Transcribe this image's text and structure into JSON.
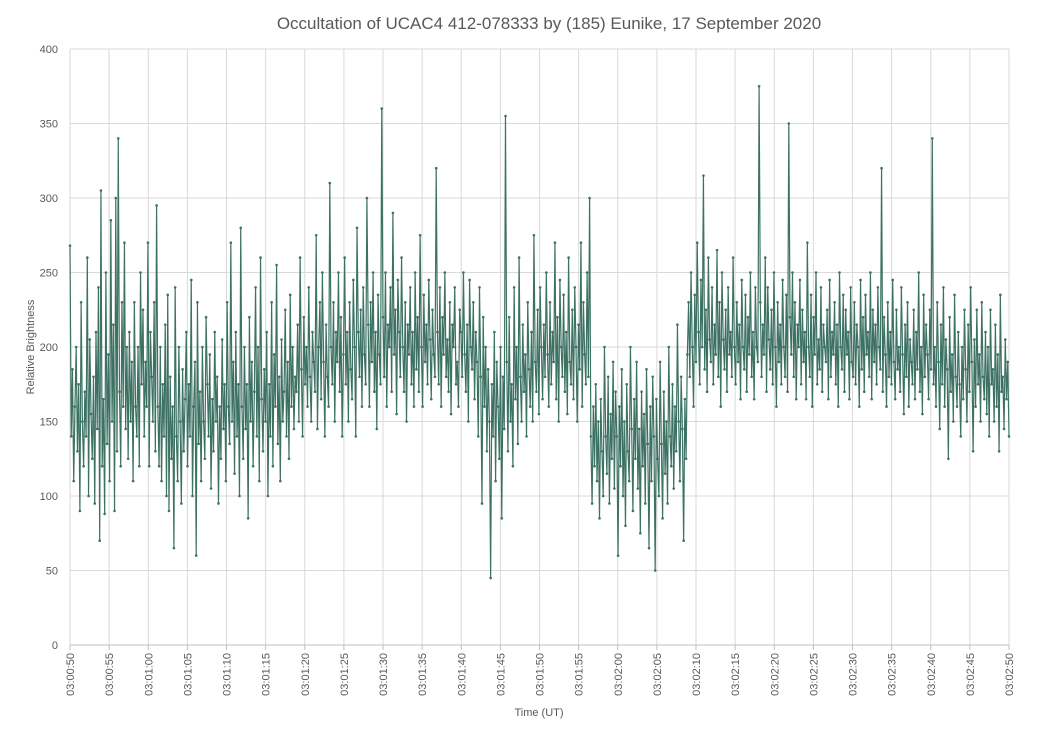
{
  "chart_data": {
    "type": "line",
    "title": "Occultation of UCAC4 412-078333 by (185) Eunike, 17 September 2020",
    "xlabel": "Time (UT)",
    "ylabel": "Relative Brightness",
    "ylim": [
      0,
      400
    ],
    "yticks": [
      0,
      50,
      100,
      150,
      200,
      250,
      300,
      350,
      400
    ],
    "xlim": [
      "03:00:50",
      "03:02:50"
    ],
    "xticks": [
      "03:00:50",
      "03:00:55",
      "03:01:00",
      "03:01:05",
      "03:01:10",
      "03:01:15",
      "03:01:20",
      "03:01:25",
      "03:01:30",
      "03:01:35",
      "03:01:40",
      "03:01:45",
      "03:01:50",
      "03:01:55",
      "03:02:00",
      "03:02:05",
      "03:02:10",
      "03:02:15",
      "03:02:20",
      "03:02:25",
      "03:02:30",
      "03:02:35",
      "03:02:40",
      "03:02:45",
      "03:02:50"
    ],
    "grid": true,
    "legend": "none",
    "markers": true,
    "color": "#3d7263",
    "series": [
      {
        "x_start": "03:00:50",
        "x_end": "03:02:50",
        "values": [
          268,
          140,
          185,
          110,
          160,
          200,
          130,
          175,
          90,
          230,
          150,
          120,
          170,
          140,
          260,
          100,
          205,
          155,
          125,
          180,
          95,
          210,
          145,
          240,
          70,
          305,
          120,
          165,
          88,
          250,
          135,
          195,
          110,
          285,
          150,
          215,
          90,
          300,
          130,
          340,
          170,
          120,
          230,
          160,
          270,
          145,
          200,
          125,
          210,
          150,
          190,
          110,
          230,
          160,
          140,
          200,
          120,
          250,
          175,
          225,
          140,
          190,
          160,
          270,
          120,
          210,
          180,
          150,
          230,
          130,
          295,
          160,
          120,
          200,
          110,
          175,
          140,
          215,
          100,
          235,
          90,
          180,
          125,
          160,
          65,
          240,
          140,
          110,
          200,
          150,
          95,
          185,
          130,
          165,
          210,
          120,
          175,
          140,
          245,
          100,
          160,
          190,
          60,
          230,
          135,
          170,
          110,
          200,
          150,
          125,
          220,
          175,
          140,
          195,
          105,
          165,
          130,
          210,
          150,
          180,
          95,
          160,
          125,
          205,
          145,
          175,
          110,
          230,
          160,
          135,
          270,
          150,
          190,
          115,
          210,
          140,
          175,
          100,
          280,
          160,
          125,
          200,
          145,
          175,
          85,
          220,
          150,
          190,
          120,
          170,
          240,
          140,
          200,
          110,
          260,
          165,
          130,
          185,
          150,
          210,
          100,
          175,
          140,
          230,
          120,
          195,
          160,
          255,
          135,
          180,
          110,
          205,
          150,
          170,
          225,
          140,
          190,
          125,
          235,
          160,
          200,
          145,
          180,
          170,
          215,
          150,
          260,
          185,
          140,
          220,
          175,
          200,
          160,
          240,
          180,
          150,
          210,
          190,
          170,
          275,
          145,
          200,
          230,
          165,
          250,
          190,
          140,
          215,
          180,
          160,
          310,
          200,
          175,
          230,
          150,
          210,
          190,
          250,
          170,
          220,
          140,
          195,
          260,
          175,
          210,
          150,
          230,
          185,
          165,
          245,
          200,
          140,
          280,
          210,
          180,
          225,
          160,
          240,
          195,
          175,
          300,
          215,
          160,
          230,
          190,
          250,
          170,
          210,
          145,
          235,
          195,
          175,
          360,
          220,
          180,
          250,
          160,
          215,
          200,
          240,
          170,
          290,
          195,
          225,
          155,
          245,
          210,
          180,
          260,
          200,
          170,
          230,
          150,
          215,
          195,
          240,
          175,
          210,
          160,
          250,
          185,
          220,
          170,
          275,
          200,
          160,
          235,
          190,
          215,
          175,
          245,
          205,
          165,
          225,
          195,
          180,
          320,
          210,
          175,
          240,
          160,
          220,
          195,
          250,
          180,
          205,
          170,
          230,
          155,
          215,
          200,
          240,
          175,
          190,
          160,
          225,
          210,
          180,
          250,
          195,
          170,
          215,
          150,
          245,
          200,
          185,
          230,
          165,
          210,
          190,
          140,
          240,
          180,
          95,
          220,
          160,
          200,
          130,
          185,
          150,
          45,
          175,
          140,
          210,
          110,
          190,
          160,
          125,
          200,
          85,
          180,
          145,
          355,
          190,
          130,
          220,
          150,
          175,
          120,
          240,
          165,
          200,
          135,
          260,
          180,
          150,
          215,
          170,
          195,
          140,
          230,
          185,
          160,
          210,
          150,
          275,
          190,
          170,
          225,
          155,
          240,
          200,
          165,
          215,
          180,
          250,
          195,
          160,
          230,
          175,
          210,
          190,
          270,
          165,
          220,
          150,
          245,
          200,
          180,
          235,
          170,
          210,
          155,
          260,
          190,
          175,
          225,
          165,
          240,
          200,
          150,
          215,
          185,
          270,
          160,
          230,
          195,
          175,
          250,
          180,
          300,
          140,
          95,
          160,
          120,
          175,
          110,
          150,
          85,
          165,
          130,
          100,
          200,
          140,
          115,
          180,
          95,
          155,
          125,
          190,
          105,
          170,
          140,
          60,
          160,
          120,
          185,
          100,
          150,
          80,
          175,
          130,
          110,
          200,
          145,
          90,
          165,
          125,
          190,
          105,
          145,
          75,
          170,
          120,
          155,
          95,
          185,
          135,
          65,
          160,
          110,
          180,
          140,
          50,
          165,
          125,
          100,
          190,
          135,
          85,
          170,
          115,
          150,
          95,
          200,
          140,
          120,
          175,
          105,
          160,
          130,
          215,
          150,
          110,
          180,
          145,
          70,
          165,
          125,
          195,
          230,
          180,
          250,
          200,
          160,
          235,
          190,
          270,
          210,
          175,
          245,
          200,
          315,
          185,
          225,
          170,
          260,
          205,
          190,
          240,
          175,
          215,
          195,
          265,
          180,
          230,
          160,
          250,
          205,
          185,
          225,
          170,
          240,
          195,
          210,
          180,
          260,
          200,
          175,
          230,
          190,
          215,
          165,
          245,
          200,
          185,
          235,
          170,
          220,
          195,
          250,
          180,
          210,
          165,
          240,
          200,
          190,
          375,
          230,
          180,
          215,
          195,
          260,
          170,
          240,
          205,
          185,
          225,
          175,
          250,
          200,
          160,
          230,
          190,
          215,
          175,
          245,
          200,
          180,
          235,
          170,
          350,
          220,
          195,
          250,
          180,
          230,
          165,
          215,
          200,
          245,
          175,
          225,
          190,
          210,
          165,
          270,
          200,
          180,
          235,
          160,
          220,
          195,
          250,
          175,
          205,
          185,
          240,
          170,
          215,
          200,
          190,
          225,
          165,
          245,
          180,
          210,
          195,
          230,
          175,
          215,
          160,
          250,
          200,
          185,
          235,
          170,
          225,
          195,
          210,
          165,
          240,
          190,
          180,
          230,
          175,
          215,
          200,
          160,
          245,
          185,
          220,
          170,
          235,
          195,
          210,
          180,
          250,
          165,
          225,
          190,
          215,
          175,
          240,
          200,
          185,
          320,
          170,
          220,
          195,
          160,
          230,
          180,
          210,
          175,
          245,
          190,
          165,
          225,
          185,
          200,
          170,
          240,
          195,
          155,
          215,
          180,
          230,
          160,
          205,
          190,
          175,
          225,
          165,
          210,
          185,
          250,
          170,
          200,
          155,
          235,
          180,
          215,
          195,
          165,
          225,
          185,
          340,
          175,
          200,
          160,
          230,
          190,
          145,
          215,
          175,
          240,
          160,
          205,
          185,
          125,
          220,
          170,
          195,
          150,
          235,
          180,
          160,
          210,
          175,
          140,
          200,
          165,
          225,
          185,
          150,
          215,
          170,
          240,
          190,
          130,
          205,
          160,
          225,
          175,
          195,
          150,
          230,
          180,
          165,
          210,
          155,
          200,
          140,
          225,
          175,
          185,
          150,
          215,
          160,
          195,
          130,
          235,
          170,
          180,
          145,
          205,
          165,
          190,
          140
        ]
      }
    ]
  }
}
